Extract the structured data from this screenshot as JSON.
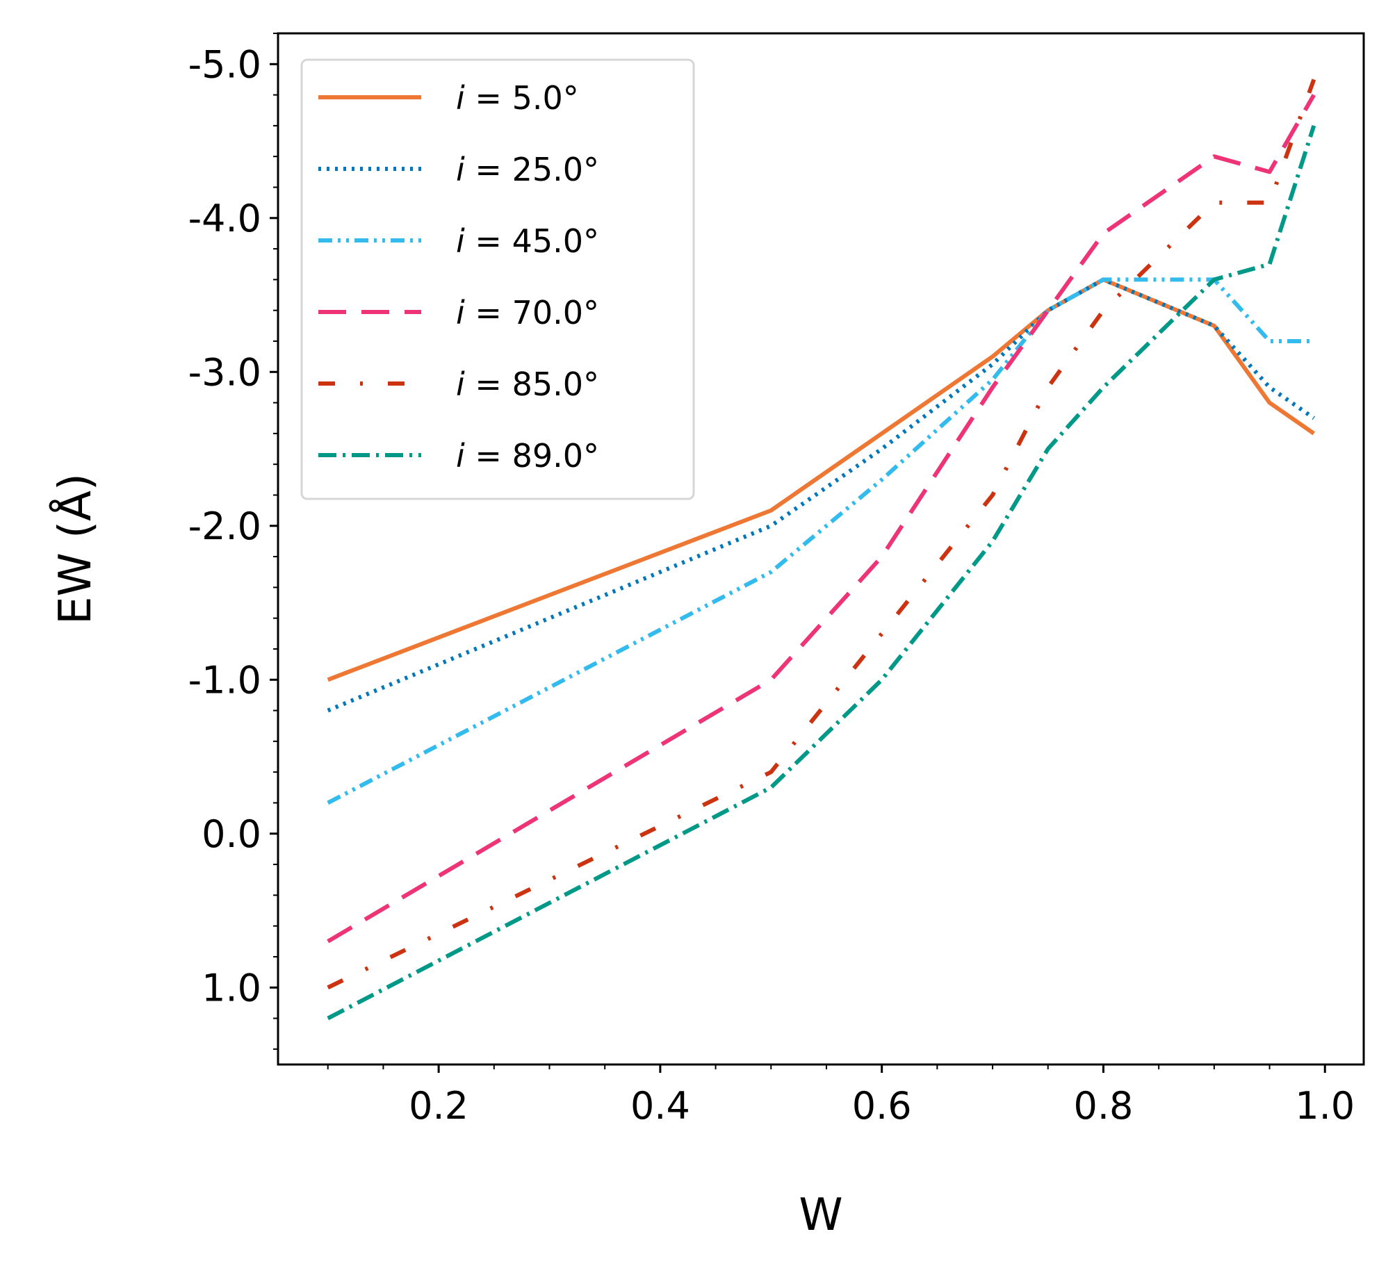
{
  "chart_data": {
    "type": "line",
    "title": "",
    "xlabel": "W",
    "ylabel": "EW (Å)",
    "xlim": [
      0.055,
      1.035
    ],
    "ylim": [
      1.5,
      -5.2
    ],
    "y_inverted": true,
    "grid": false,
    "legend_position": "upper-left",
    "x_ticks": [
      0.2,
      0.4,
      0.6,
      0.8,
      1.0
    ],
    "x_tick_labels": [
      "0.2",
      "0.4",
      "0.6",
      "0.8",
      "1.0"
    ],
    "y_ticks": [
      1.0,
      0.0,
      -1.0,
      -2.0,
      -3.0,
      -4.0,
      -5.0
    ],
    "y_tick_labels": [
      "1.0",
      "0.0",
      "-1.0",
      "-2.0",
      "-3.0",
      "-4.0",
      "-5.0"
    ],
    "x": [
      0.1,
      0.5,
      0.6,
      0.7,
      0.75,
      0.8,
      0.9,
      0.95,
      0.99
    ],
    "series": [
      {
        "name": "i = 5.0°",
        "legend_prefix": "i",
        "legend_suffix": " = 5.0°",
        "color": "#EE7733",
        "dash": "solid",
        "values": [
          -1.0,
          -2.1,
          -2.6,
          -3.1,
          -3.4,
          -3.6,
          -3.3,
          -2.8,
          -2.6
        ]
      },
      {
        "name": "i = 25.0°",
        "legend_prefix": "i",
        "legend_suffix": " = 25.0°",
        "color": "#0077BB",
        "dash": "dotted",
        "values": [
          -0.8,
          -2.0,
          -2.5,
          -3.05,
          -3.4,
          -3.6,
          -3.3,
          -2.9,
          -2.7
        ]
      },
      {
        "name": "i = 45.0°",
        "legend_prefix": "i",
        "legend_suffix": " = 45.0°",
        "color": "#33BBEE",
        "dash": "dashdotdot",
        "values": [
          -0.2,
          -1.7,
          -2.3,
          -2.95,
          -3.4,
          -3.6,
          -3.6,
          -3.2,
          -3.2
        ]
      },
      {
        "name": "i = 70.0°",
        "legend_prefix": "i",
        "legend_suffix": " = 70.0°",
        "color": "#EE3377",
        "dash": "longdash",
        "values": [
          0.7,
          -1.0,
          -1.8,
          -2.9,
          -3.4,
          -3.9,
          -4.4,
          -4.3,
          -4.8
        ]
      },
      {
        "name": "i = 85.0°",
        "legend_prefix": "i",
        "legend_suffix": " = 85.0°",
        "color": "#CC3311",
        "dash": "loosedashdot",
        "values": [
          1.0,
          -0.4,
          -1.3,
          -2.2,
          -2.9,
          -3.4,
          -4.1,
          -4.1,
          -4.9
        ]
      },
      {
        "name": "i = 89.0°",
        "legend_prefix": "i",
        "legend_suffix": " = 89.0°",
        "color": "#009988",
        "dash": "dashdot",
        "values": [
          1.2,
          -0.3,
          -1.0,
          -1.9,
          -2.5,
          -2.9,
          -3.6,
          -3.7,
          -4.6
        ]
      }
    ]
  }
}
